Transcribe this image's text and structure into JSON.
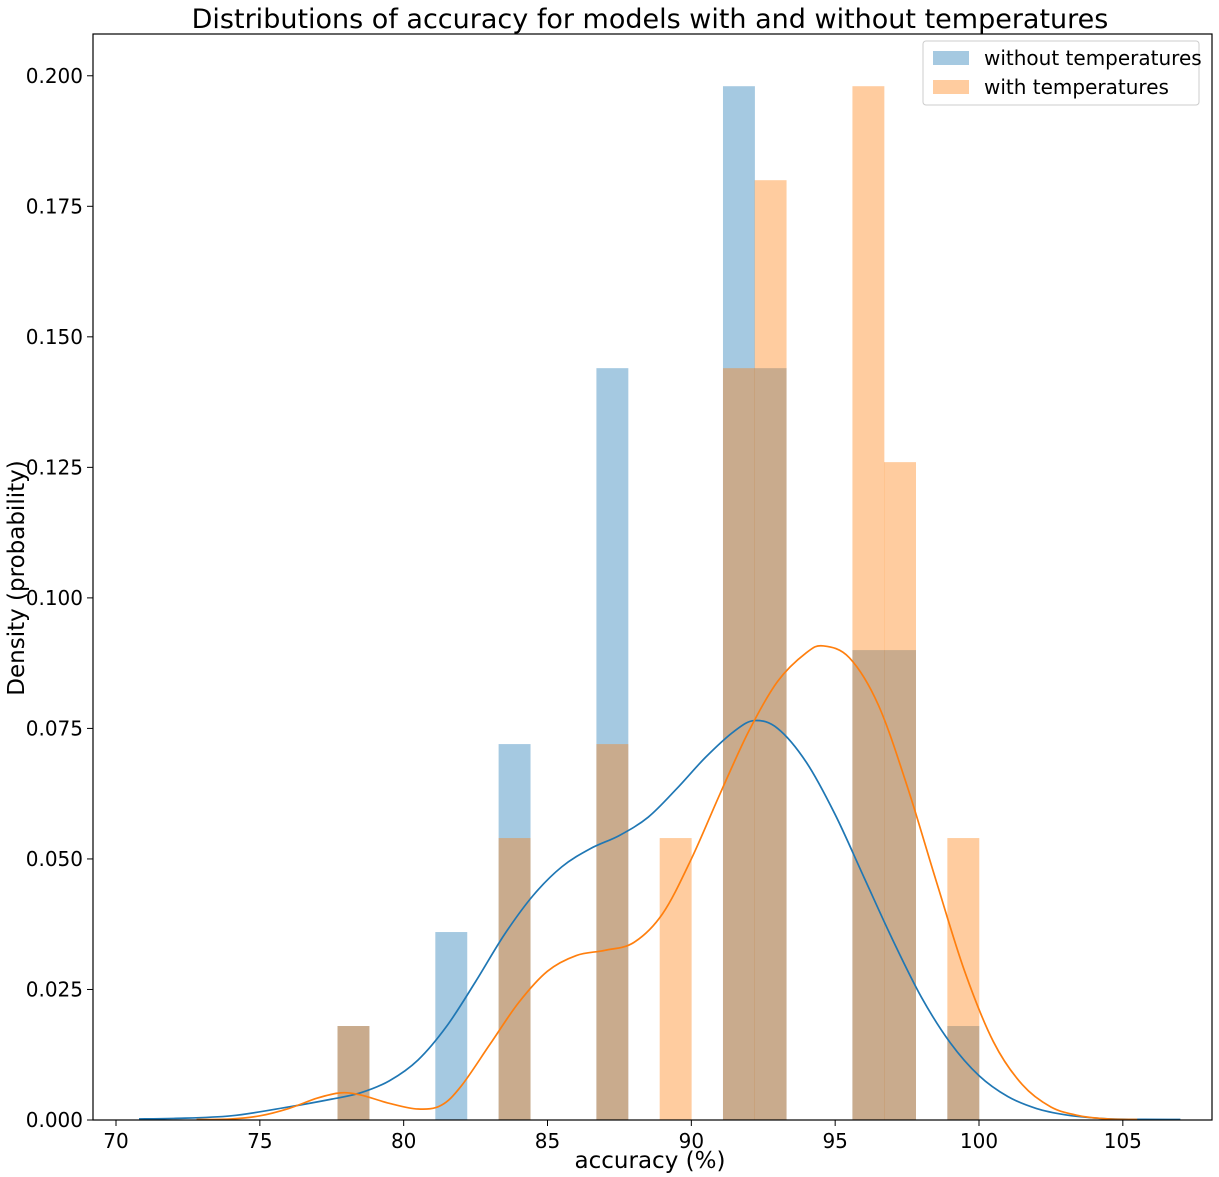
{
  "chart_data": {
    "type": "bar",
    "title": "Distributions of accuracy for models with and without temperatures",
    "xlabel": "accuracy (%)",
    "ylabel": "Density (probability)",
    "xlim": [
      69.2,
      108.1
    ],
    "ylim": [
      0,
      0.208
    ],
    "xticks": [
      70,
      75,
      80,
      85,
      90,
      95,
      100,
      105
    ],
    "yticks": [
      0.0,
      0.025,
      0.05,
      0.075,
      0.1,
      0.125,
      0.15,
      0.175,
      0.2
    ],
    "xtick_labels": [
      "70",
      "75",
      "80",
      "85",
      "90",
      "95",
      "100",
      "105"
    ],
    "ytick_labels": [
      "0.000",
      "0.025",
      "0.050",
      "0.075",
      "0.100",
      "0.125",
      "0.150",
      "0.175",
      "0.200"
    ],
    "grid": false,
    "legend_position": "top-right",
    "bin_width": 1.11,
    "series": [
      {
        "name": "without temperatures",
        "kind": "histogram",
        "color": "#1f77b4",
        "alpha": 0.4,
        "bins": [
          {
            "start": 77.7,
            "density": 0.018
          },
          {
            "start": 81.1,
            "density": 0.036
          },
          {
            "start": 83.3,
            "density": 0.072
          },
          {
            "start": 86.7,
            "density": 0.144
          },
          {
            "start": 91.1,
            "density": 0.198
          },
          {
            "start": 92.2,
            "density": 0.144
          },
          {
            "start": 95.6,
            "density": 0.09
          },
          {
            "start": 96.7,
            "density": 0.09
          },
          {
            "start": 98.9,
            "density": 0.018
          }
        ]
      },
      {
        "name": "with temperatures",
        "kind": "histogram",
        "color": "#ff7f0e",
        "alpha": 0.4,
        "bins": [
          {
            "start": 77.7,
            "density": 0.018
          },
          {
            "start": 83.3,
            "density": 0.054
          },
          {
            "start": 86.7,
            "density": 0.072
          },
          {
            "start": 88.9,
            "density": 0.054
          },
          {
            "start": 91.1,
            "density": 0.144
          },
          {
            "start": 92.2,
            "density": 0.18
          },
          {
            "start": 95.6,
            "density": 0.198
          },
          {
            "start": 96.7,
            "density": 0.126
          },
          {
            "start": 98.9,
            "density": 0.054
          }
        ]
      }
    ],
    "kde": [
      {
        "name": "without temperatures",
        "color": "#1f77b4",
        "points": [
          [
            70.8,
            0.0002
          ],
          [
            72,
            0.0003
          ],
          [
            74,
            0.0008
          ],
          [
            76,
            0.0025
          ],
          [
            77.5,
            0.004
          ],
          [
            78.5,
            0.0052
          ],
          [
            79.5,
            0.0075
          ],
          [
            80.5,
            0.0115
          ],
          [
            81.5,
            0.018
          ],
          [
            82.5,
            0.0265
          ],
          [
            83.5,
            0.0355
          ],
          [
            84.5,
            0.043
          ],
          [
            85.5,
            0.0485
          ],
          [
            86.5,
            0.052
          ],
          [
            87.5,
            0.0545
          ],
          [
            88.5,
            0.058
          ],
          [
            89.5,
            0.0635
          ],
          [
            90.5,
            0.0695
          ],
          [
            91.5,
            0.0745
          ],
          [
            92.2,
            0.0765
          ],
          [
            93,
            0.075
          ],
          [
            94,
            0.0685
          ],
          [
            95,
            0.0585
          ],
          [
            96,
            0.0465
          ],
          [
            97,
            0.0345
          ],
          [
            98,
            0.0235
          ],
          [
            99,
            0.0148
          ],
          [
            100,
            0.0085
          ],
          [
            101,
            0.0045
          ],
          [
            102,
            0.0022
          ],
          [
            103,
            0.001
          ],
          [
            104,
            0.0004
          ],
          [
            105,
            0.00015
          ],
          [
            107,
            0.0001
          ]
        ]
      },
      {
        "name": "with temperatures",
        "color": "#ff7f0e",
        "points": [
          [
            72.8,
            0.0001
          ],
          [
            74,
            0.0002
          ],
          [
            75,
            0.0008
          ],
          [
            76,
            0.0022
          ],
          [
            77,
            0.0042
          ],
          [
            77.8,
            0.0052
          ],
          [
            78.5,
            0.0048
          ],
          [
            79.5,
            0.0032
          ],
          [
            80.5,
            0.0021
          ],
          [
            81.3,
            0.0028
          ],
          [
            82,
            0.0065
          ],
          [
            83,
            0.0145
          ],
          [
            84,
            0.0225
          ],
          [
            85,
            0.0285
          ],
          [
            86,
            0.0315
          ],
          [
            87,
            0.0325
          ],
          [
            88,
            0.034
          ],
          [
            89,
            0.0395
          ],
          [
            90,
            0.05
          ],
          [
            91,
            0.0625
          ],
          [
            92,
            0.0745
          ],
          [
            93,
            0.084
          ],
          [
            94,
            0.0895
          ],
          [
            94.6,
            0.0908
          ],
          [
            95.5,
            0.0885
          ],
          [
            96.5,
            0.0795
          ],
          [
            97.5,
            0.064
          ],
          [
            98.5,
            0.046
          ],
          [
            99.5,
            0.0285
          ],
          [
            100.5,
            0.015
          ],
          [
            101.5,
            0.0068
          ],
          [
            102.5,
            0.0025
          ],
          [
            103.5,
            0.0008
          ],
          [
            104.5,
            0.0002
          ],
          [
            105.5,
            0.0001
          ]
        ]
      }
    ]
  }
}
